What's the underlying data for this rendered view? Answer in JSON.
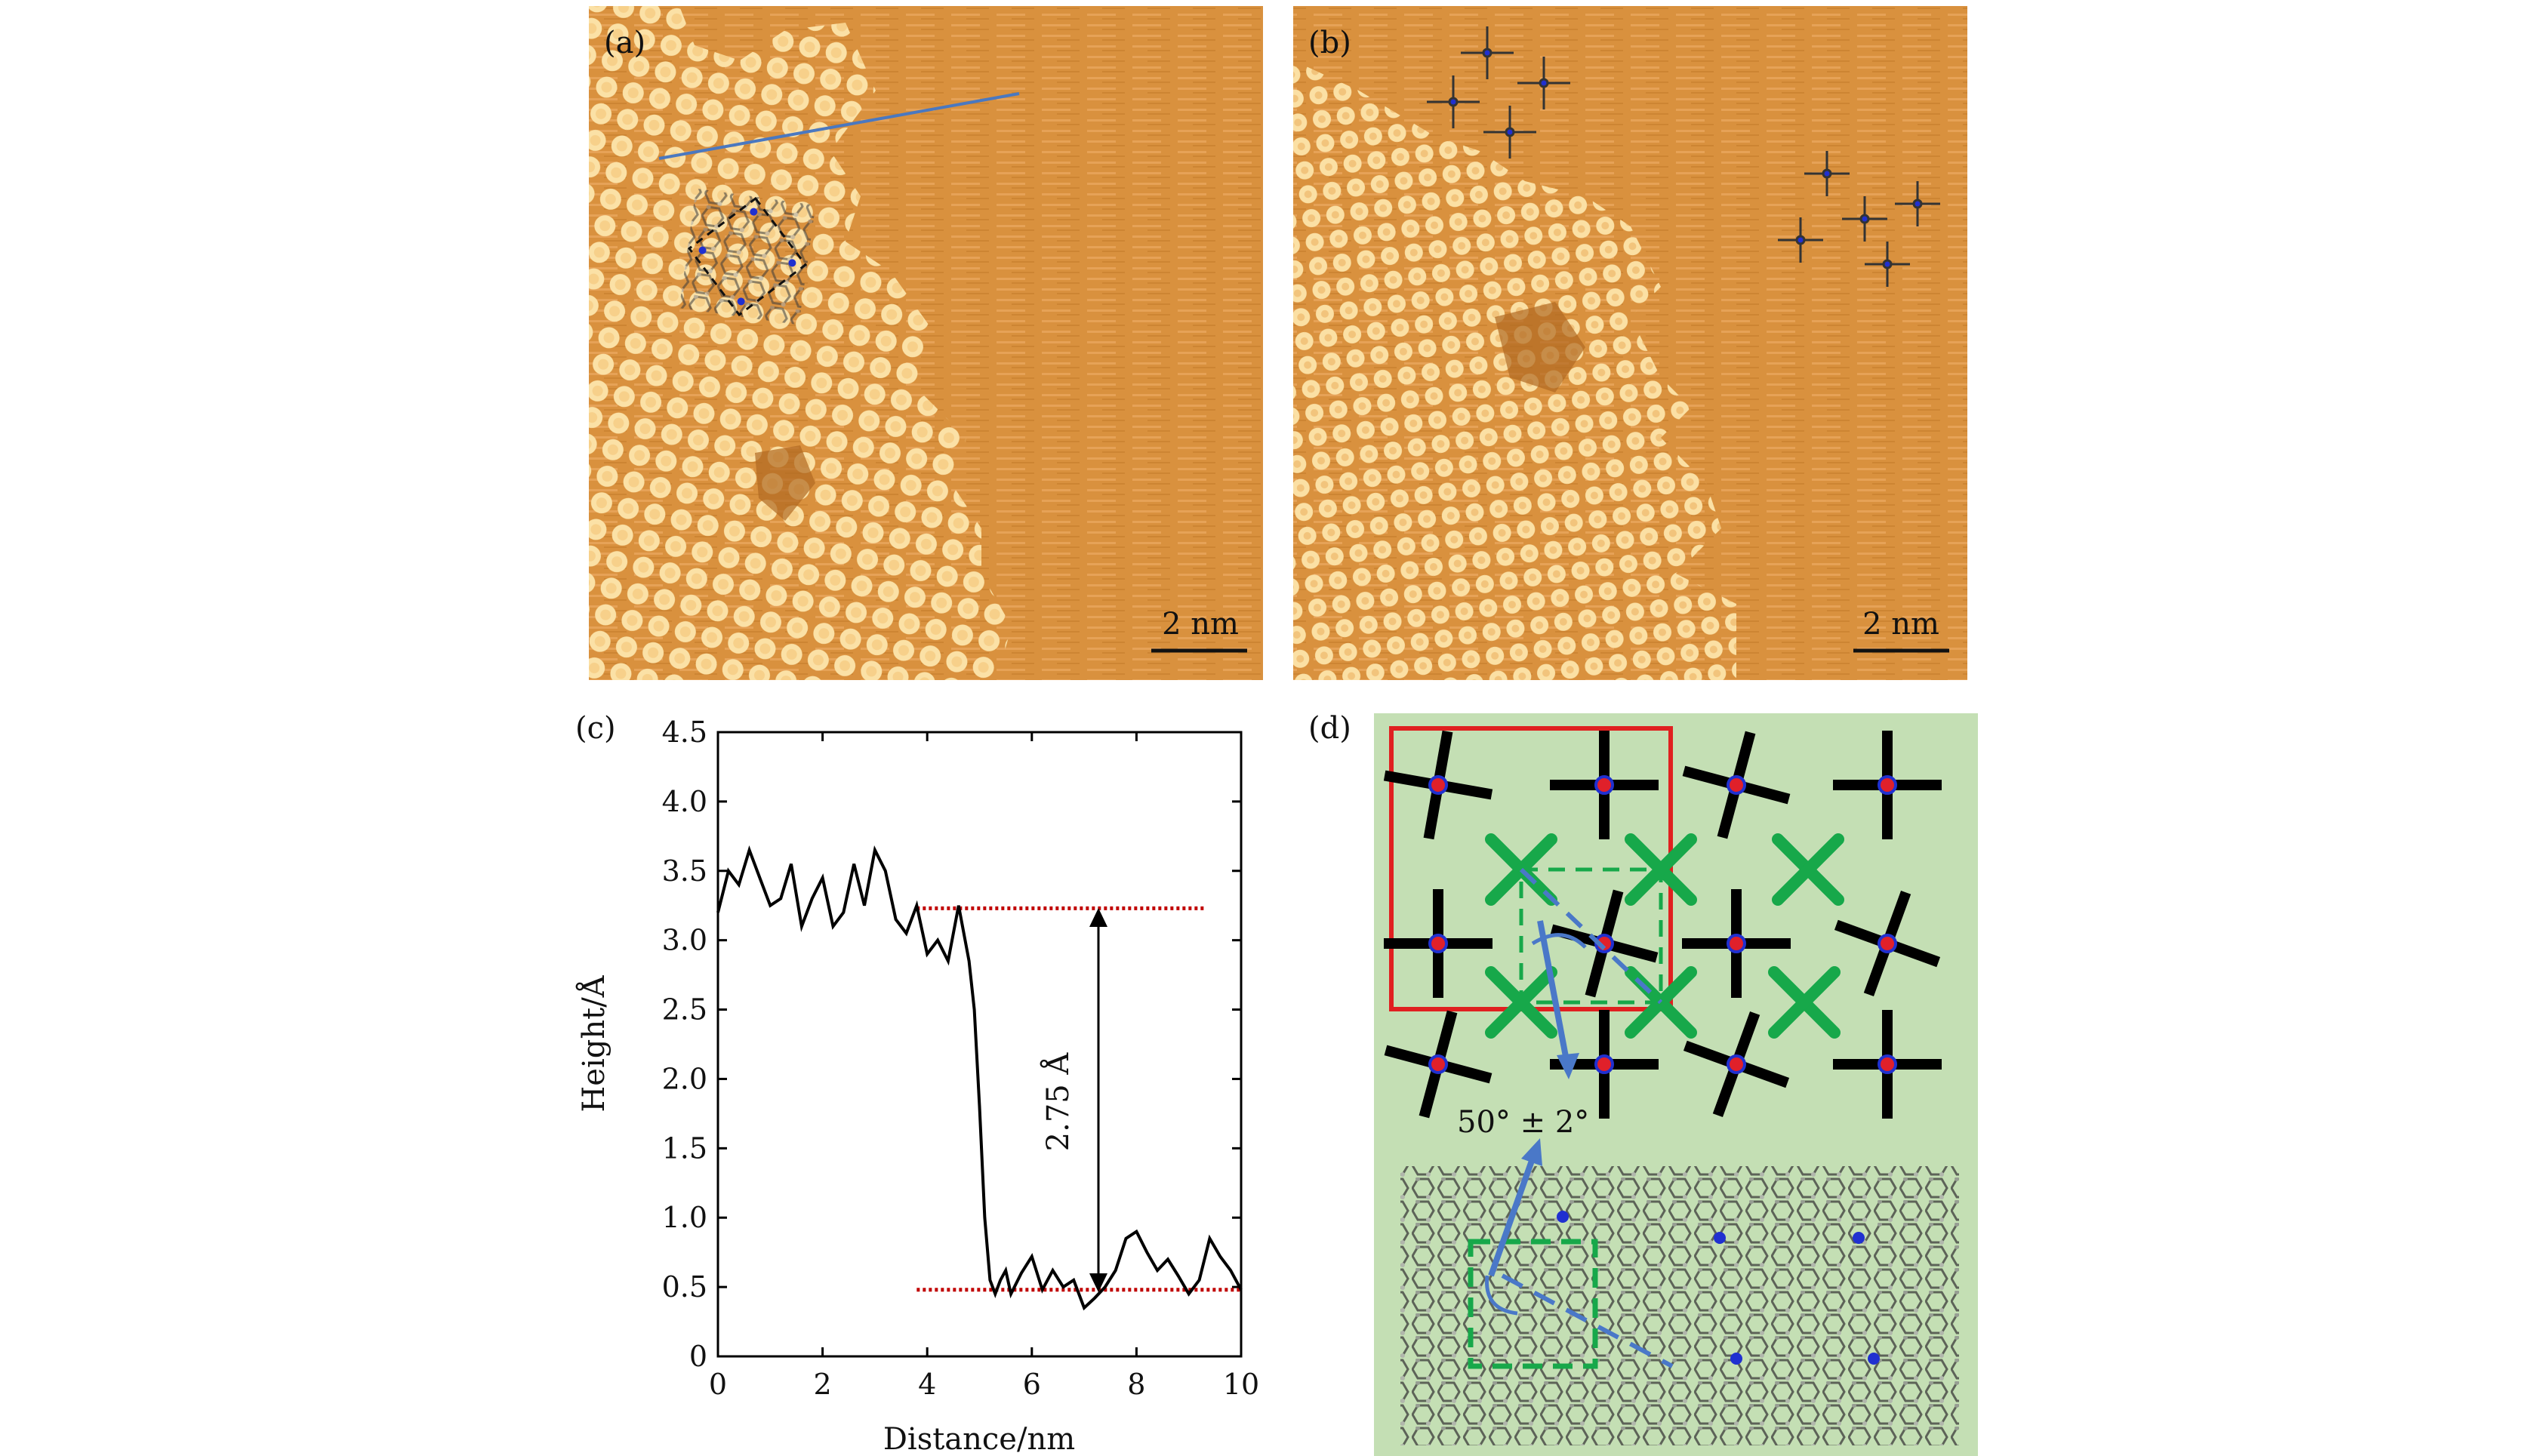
{
  "panels": {
    "a": {
      "label": "(a)",
      "scale_bar_label": "2 nm",
      "colors": {
        "terrace": "#f4c77c",
        "substrate": "#d78e3c",
        "line": "#4a78c0",
        "pore": "#b06a22"
      }
    },
    "b": {
      "label": "(b)",
      "scale_bar_label": "2 nm"
    },
    "c": {
      "label": "(c)",
      "annotation": "2.75 Å",
      "chart_data": {
        "type": "line",
        "title": "",
        "xlabel": "Distance/nm",
        "ylabel": "Height/Å",
        "xlim": [
          0,
          10
        ],
        "ylim": [
          0,
          4.5
        ],
        "xticks": [
          "0",
          "2",
          "4",
          "6",
          "8",
          "10"
        ],
        "yticks": [
          "0",
          "0.5",
          "1.0",
          "1.5",
          "2.0",
          "2.5",
          "3.0",
          "3.5",
          "4.0",
          "4.5"
        ],
        "reference_lines": [
          {
            "name": "upper-level",
            "y": 3.23,
            "x_start": 3.8,
            "x_end": 9.3,
            "color": "#c00000"
          },
          {
            "name": "lower-level",
            "y": 0.48,
            "x_start": 3.8,
            "x_end": 10.0,
            "color": "#c00000"
          }
        ],
        "series": [
          {
            "name": "height-profile",
            "color": "#000000",
            "x": [
              0,
              0.2,
              0.4,
              0.6,
              0.8,
              1.0,
              1.2,
              1.4,
              1.6,
              1.8,
              2.0,
              2.2,
              2.4,
              2.6,
              2.8,
              3.0,
              3.2,
              3.4,
              3.6,
              3.8,
              4.0,
              4.2,
              4.4,
              4.6,
              4.8,
              4.9,
              5.0,
              5.1,
              5.2,
              5.3,
              5.4,
              5.5,
              5.6,
              5.8,
              6.0,
              6.2,
              6.4,
              6.6,
              6.8,
              7.0,
              7.2,
              7.4,
              7.6,
              7.8,
              8.0,
              8.2,
              8.4,
              8.6,
              8.8,
              9.0,
              9.2,
              9.4,
              9.6,
              9.8,
              10.0
            ],
            "y": [
              3.2,
              3.5,
              3.4,
              3.65,
              3.45,
              3.25,
              3.3,
              3.55,
              3.1,
              3.3,
              3.45,
              3.1,
              3.2,
              3.55,
              3.25,
              3.65,
              3.5,
              3.15,
              3.05,
              3.25,
              2.9,
              3.0,
              2.85,
              3.25,
              2.85,
              2.5,
              1.8,
              1.0,
              0.55,
              0.45,
              0.55,
              0.62,
              0.45,
              0.6,
              0.72,
              0.48,
              0.62,
              0.5,
              0.55,
              0.35,
              0.42,
              0.5,
              0.62,
              0.85,
              0.9,
              0.75,
              0.62,
              0.7,
              0.58,
              0.45,
              0.55,
              0.85,
              0.72,
              0.62,
              0.48
            ]
          }
        ]
      }
    },
    "d": {
      "label": "(d)",
      "angle_label": "50° ± 2°",
      "colors": {
        "background": "#c4dfb4",
        "red_box": "#e02020",
        "green": "#17a84a",
        "arrow": "#4a78c8",
        "cross": "#000000",
        "center_red": "#e0202a",
        "center_blue": "#2030d0"
      }
    }
  }
}
